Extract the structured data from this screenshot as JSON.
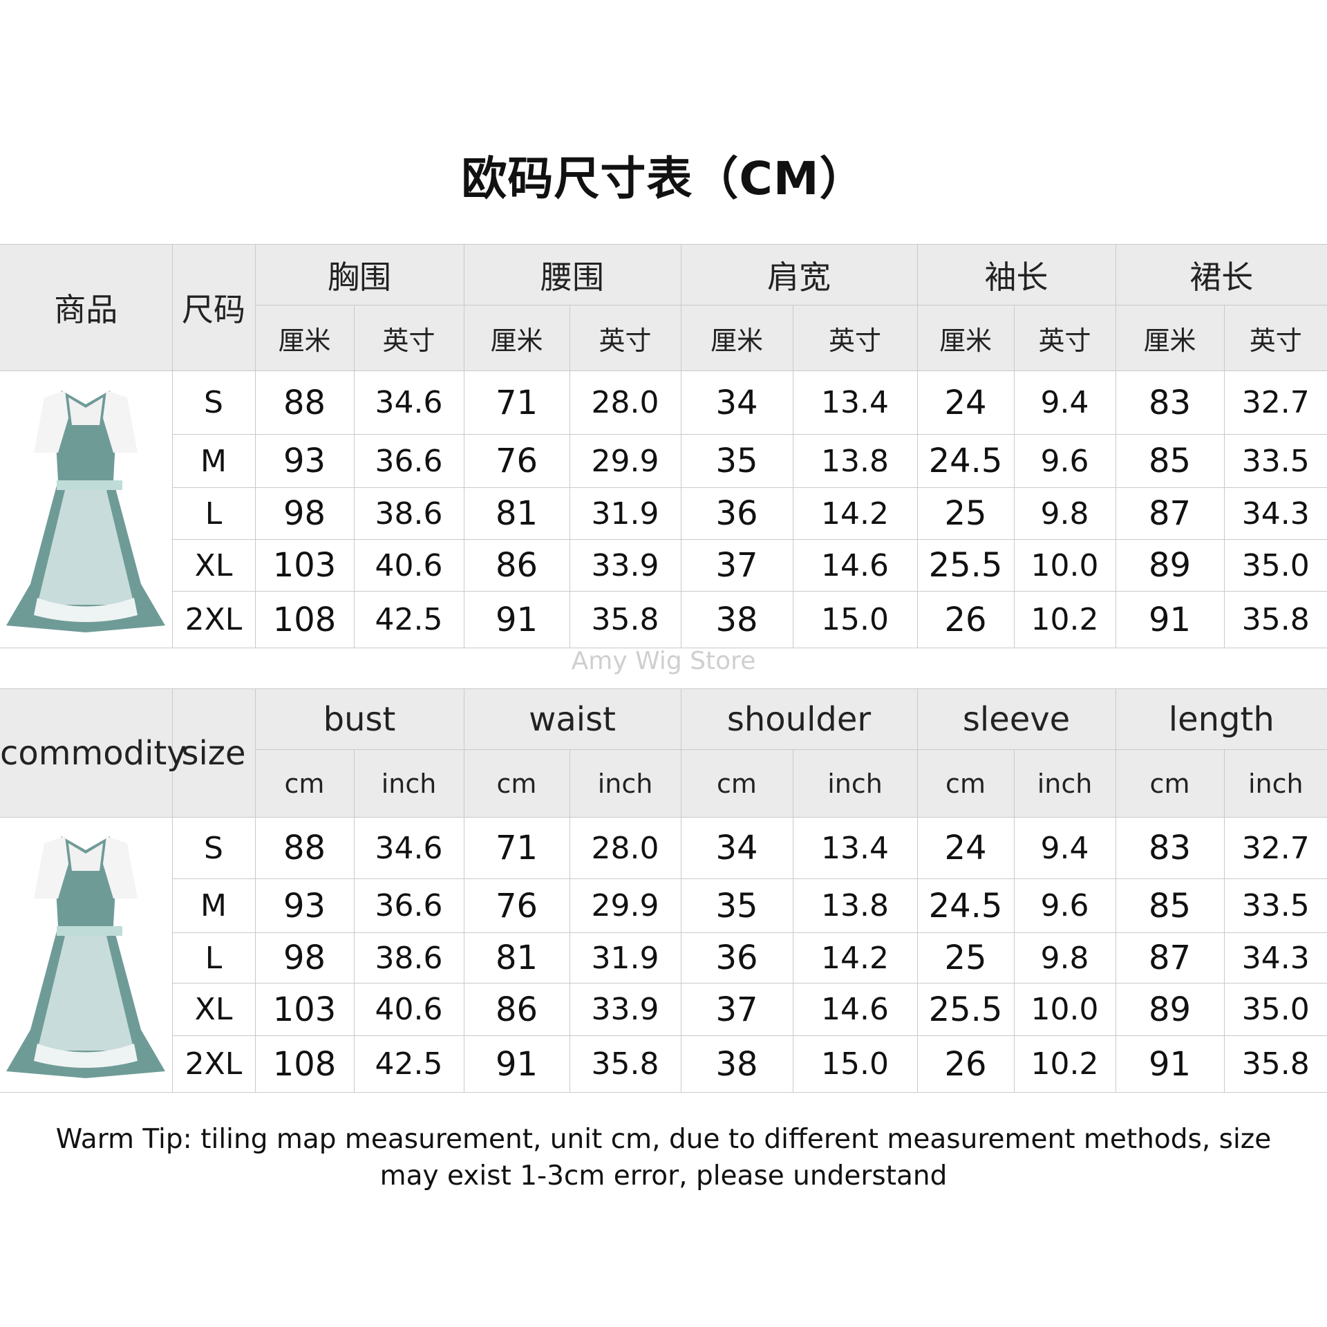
{
  "title": "欧码尺寸表（CM）",
  "watermark": "Amy Wig Store",
  "colors": {
    "header_bg": "#ebebeb",
    "border": "#c9c9c9",
    "dress": "#6f9b97"
  },
  "tables": [
    {
      "lang": "zh",
      "commodity": "商品",
      "size": "尺码",
      "groups": [
        "胸围",
        "腰围",
        "肩宽",
        "袖长",
        "裙长"
      ],
      "unit_cm": "厘米",
      "unit_inch": "英寸",
      "image": "dress-image",
      "rows": [
        {
          "size": "S",
          "values": [
            "88",
            "34.6",
            "71",
            "28.0",
            "34",
            "13.4",
            "24",
            "9.4",
            "83",
            "32.7"
          ]
        },
        {
          "size": "M",
          "values": [
            "93",
            "36.6",
            "76",
            "29.9",
            "35",
            "13.8",
            "24.5",
            "9.6",
            "85",
            "33.5"
          ]
        },
        {
          "size": "L",
          "values": [
            "98",
            "38.6",
            "81",
            "31.9",
            "36",
            "14.2",
            "25",
            "9.8",
            "87",
            "34.3"
          ]
        },
        {
          "size": "XL",
          "values": [
            "103",
            "40.6",
            "86",
            "33.9",
            "37",
            "14.6",
            "25.5",
            "10.0",
            "89",
            "35.0"
          ]
        },
        {
          "size": "2XL",
          "values": [
            "108",
            "42.5",
            "91",
            "35.8",
            "38",
            "15.0",
            "26",
            "10.2",
            "91",
            "35.8"
          ]
        }
      ]
    },
    {
      "lang": "en",
      "commodity": "commodity",
      "size": "size",
      "groups": [
        "bust",
        "waist",
        "shoulder",
        "sleeve",
        "length"
      ],
      "unit_cm": "cm",
      "unit_inch": "inch",
      "image": "dress-image",
      "rows": [
        {
          "size": "S",
          "values": [
            "88",
            "34.6",
            "71",
            "28.0",
            "34",
            "13.4",
            "24",
            "9.4",
            "83",
            "32.7"
          ]
        },
        {
          "size": "M",
          "values": [
            "93",
            "36.6",
            "76",
            "29.9",
            "35",
            "13.8",
            "24.5",
            "9.6",
            "85",
            "33.5"
          ]
        },
        {
          "size": "L",
          "values": [
            "98",
            "38.6",
            "81",
            "31.9",
            "36",
            "14.2",
            "25",
            "9.8",
            "87",
            "34.3"
          ]
        },
        {
          "size": "XL",
          "values": [
            "103",
            "40.6",
            "86",
            "33.9",
            "37",
            "14.6",
            "25.5",
            "10.0",
            "89",
            "35.0"
          ]
        },
        {
          "size": "2XL",
          "values": [
            "108",
            "42.5",
            "91",
            "35.8",
            "38",
            "15.0",
            "26",
            "10.2",
            "91",
            "35.8"
          ]
        }
      ]
    }
  ],
  "tip": "Warm Tip: tiling map measurement, unit cm, due to different measurement methods, size may exist 1-3cm error, please understand"
}
